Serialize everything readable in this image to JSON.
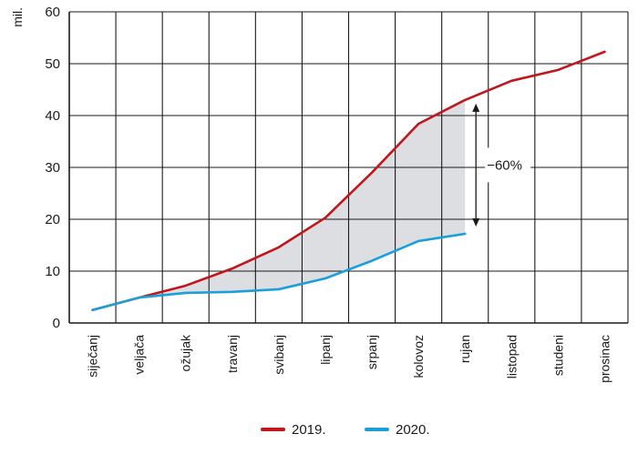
{
  "chart_data": {
    "type": "line",
    "title": "",
    "xlabel": "",
    "ylabel": "mil.",
    "ylim": [
      0,
      60
    ],
    "yticks": [
      "0",
      "10",
      "20",
      "30",
      "40",
      "50",
      "60"
    ],
    "grid": true,
    "categories": [
      "siječanj",
      "veljača",
      "ožujak",
      "travanj",
      "svibanj",
      "lipanj",
      "srpanj",
      "kolovoz",
      "rujan",
      "listopad",
      "studeni",
      "prosinac"
    ],
    "series": [
      {
        "name": "2019.",
        "color": "#c0161c",
        "values": [
          2.5,
          4.9,
          7.2,
          10.5,
          14.6,
          20.3,
          29.0,
          38.4,
          43.0,
          46.7,
          48.8,
          52.3
        ]
      },
      {
        "name": "2020.",
        "color": "#1a9fdb",
        "values": [
          2.5,
          4.9,
          5.8,
          6.0,
          6.5,
          8.6,
          12.0,
          15.8,
          17.2,
          null,
          null,
          null
        ]
      }
    ],
    "shaded_gap": {
      "between": [
        "2019.",
        "2020."
      ],
      "color": "#dcdee2"
    },
    "annotation": {
      "text": "−60%",
      "category": "rujan"
    },
    "legend": {
      "position": "bottom-center",
      "items": [
        "2019.",
        "2020."
      ]
    }
  }
}
